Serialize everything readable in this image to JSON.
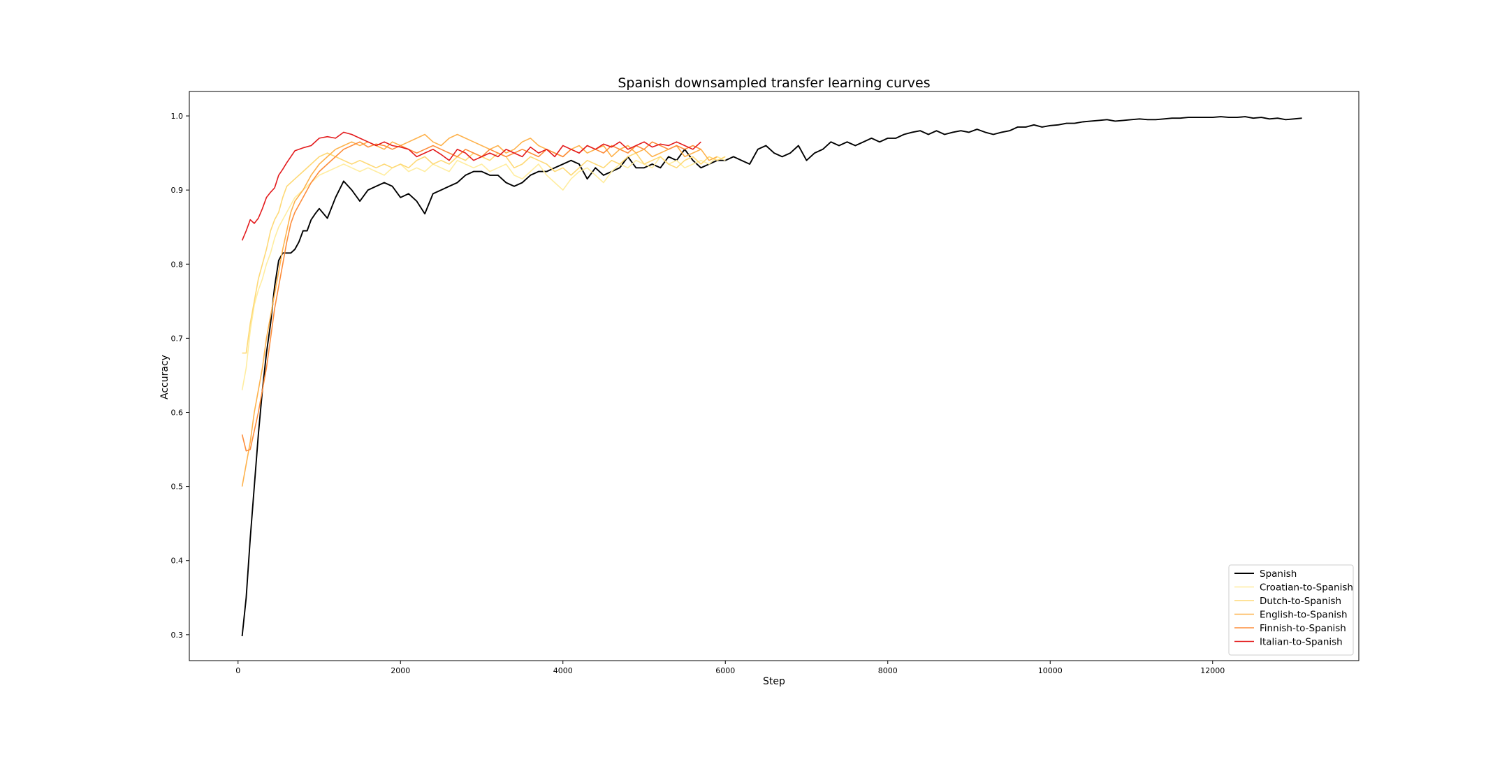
{
  "chart_data": {
    "type": "line",
    "title": "Spanish downsampled transfer learning curves",
    "xlabel": "Step",
    "ylabel": "Accuracy",
    "xlim": [
      -600,
      13800
    ],
    "ylim": [
      0.265,
      1.033
    ],
    "xticks": [
      0,
      2000,
      4000,
      6000,
      8000,
      10000,
      12000
    ],
    "xtick_labels": [
      "0",
      "2000",
      "4000",
      "6000",
      "8000",
      "10000",
      "12000"
    ],
    "yticks": [
      0.3,
      0.4,
      0.5,
      0.6,
      0.7,
      0.8,
      0.9,
      1.0
    ],
    "ytick_labels": [
      "0.3",
      "0.4",
      "0.5",
      "0.6",
      "0.7",
      "0.8",
      "0.9",
      "1.0"
    ],
    "grid": false,
    "legend": "lower-right",
    "series": [
      {
        "name": "Spanish",
        "color": "#000000",
        "x": [
          50,
          100,
          150,
          200,
          250,
          300,
          350,
          400,
          450,
          500,
          550,
          600,
          650,
          700,
          750,
          800,
          850,
          900,
          950,
          1000,
          1100,
          1200,
          1300,
          1400,
          1500,
          1600,
          1700,
          1800,
          1900,
          2000,
          2100,
          2200,
          2300,
          2400,
          2500,
          2600,
          2700,
          2800,
          2900,
          3000,
          3100,
          3200,
          3300,
          3400,
          3500,
          3600,
          3700,
          3800,
          3900,
          4000,
          4100,
          4200,
          4300,
          4400,
          4500,
          4600,
          4700,
          4800,
          4900,
          5000,
          5100,
          5200,
          5300,
          5400,
          5500,
          5600,
          5700,
          5800,
          5900,
          6000,
          6100,
          6200,
          6300,
          6400,
          6500,
          6600,
          6700,
          6800,
          6900,
          7000,
          7100,
          7200,
          7300,
          7400,
          7500,
          7600,
          7700,
          7800,
          7900,
          8000,
          8100,
          8200,
          8300,
          8400,
          8500,
          8600,
          8700,
          8800,
          8900,
          9000,
          9100,
          9200,
          9300,
          9400,
          9500,
          9600,
          9700,
          9800,
          9900,
          10000,
          10100,
          10200,
          10300,
          10400,
          10500,
          10600,
          10700,
          10800,
          10900,
          11000,
          11100,
          11200,
          11300,
          11400,
          11500,
          11600,
          11700,
          11800,
          11900,
          12000,
          12100,
          12200,
          12300,
          12400,
          12500,
          12600,
          12700,
          12800,
          12900,
          13000,
          13100
        ],
        "y": [
          0.298,
          0.35,
          0.43,
          0.5,
          0.57,
          0.63,
          0.68,
          0.72,
          0.77,
          0.805,
          0.815,
          0.815,
          0.815,
          0.82,
          0.83,
          0.845,
          0.845,
          0.86,
          0.868,
          0.875,
          0.862,
          0.89,
          0.912,
          0.9,
          0.885,
          0.9,
          0.905,
          0.91,
          0.905,
          0.89,
          0.895,
          0.885,
          0.868,
          0.895,
          0.9,
          0.905,
          0.91,
          0.92,
          0.925,
          0.925,
          0.92,
          0.92,
          0.91,
          0.905,
          0.91,
          0.92,
          0.925,
          0.925,
          0.93,
          0.935,
          0.94,
          0.935,
          0.915,
          0.93,
          0.92,
          0.925,
          0.93,
          0.945,
          0.93,
          0.93,
          0.935,
          0.93,
          0.945,
          0.94,
          0.955,
          0.94,
          0.93,
          0.935,
          0.94,
          0.94,
          0.945,
          0.94,
          0.935,
          0.955,
          0.96,
          0.95,
          0.945,
          0.95,
          0.96,
          0.94,
          0.95,
          0.955,
          0.965,
          0.96,
          0.965,
          0.96,
          0.965,
          0.97,
          0.965,
          0.97,
          0.97,
          0.975,
          0.978,
          0.98,
          0.975,
          0.98,
          0.975,
          0.978,
          0.98,
          0.978,
          0.982,
          0.978,
          0.975,
          0.978,
          0.98,
          0.985,
          0.985,
          0.988,
          0.985,
          0.987,
          0.988,
          0.99,
          0.99,
          0.992,
          0.993,
          0.994,
          0.995,
          0.993,
          0.994,
          0.995,
          0.996,
          0.995,
          0.995,
          0.996,
          0.997,
          0.997,
          0.998,
          0.998,
          0.998,
          0.998,
          0.999,
          0.998,
          0.998,
          0.999,
          0.997,
          0.998,
          0.996,
          0.997,
          0.995,
          0.996,
          0.997
        ]
      },
      {
        "name": "Croatian-to-Spanish",
        "color": "#ffeda0",
        "x": [
          50,
          100,
          150,
          200,
          250,
          300,
          350,
          400,
          450,
          500,
          550,
          600,
          650,
          700,
          800,
          900,
          1000,
          1100,
          1200,
          1300,
          1400,
          1500,
          1600,
          1700,
          1800,
          1900,
          2000,
          2100,
          2200,
          2300,
          2400,
          2500,
          2600,
          2700,
          2800,
          2900,
          3000,
          3100,
          3200,
          3300,
          3400,
          3500,
          3600,
          3700,
          3800,
          3900,
          4000,
          4100,
          4200,
          4300,
          4400,
          4500,
          4600,
          4700,
          4800,
          4900,
          5000,
          5100,
          5200,
          5300,
          5400,
          5500,
          5600,
          5700,
          5800,
          5900,
          6000
        ],
        "y": [
          0.63,
          0.66,
          0.71,
          0.745,
          0.765,
          0.78,
          0.8,
          0.815,
          0.835,
          0.85,
          0.86,
          0.87,
          0.88,
          0.89,
          0.9,
          0.91,
          0.92,
          0.925,
          0.93,
          0.935,
          0.93,
          0.925,
          0.93,
          0.925,
          0.92,
          0.93,
          0.935,
          0.925,
          0.93,
          0.925,
          0.935,
          0.93,
          0.925,
          0.94,
          0.935,
          0.93,
          0.935,
          0.925,
          0.93,
          0.935,
          0.92,
          0.915,
          0.925,
          0.935,
          0.92,
          0.91,
          0.9,
          0.915,
          0.925,
          0.93,
          0.92,
          0.91,
          0.925,
          0.935,
          0.93,
          0.94,
          0.935,
          0.93,
          0.945,
          0.935,
          0.94,
          0.93,
          0.935,
          0.94,
          0.935,
          0.945,
          0.94
        ]
      },
      {
        "name": "Dutch-to-Spanish",
        "color": "#fed976",
        "x": [
          50,
          100,
          150,
          200,
          250,
          300,
          350,
          400,
          450,
          500,
          550,
          600,
          650,
          700,
          800,
          900,
          1000,
          1100,
          1200,
          1300,
          1400,
          1500,
          1600,
          1700,
          1800,
          1900,
          2000,
          2100,
          2200,
          2300,
          2400,
          2500,
          2600,
          2700,
          2800,
          2900,
          3000,
          3100,
          3200,
          3300,
          3400,
          3500,
          3600,
          3700,
          3800,
          3900,
          4000,
          4100,
          4200,
          4300,
          4400,
          4500,
          4600,
          4700,
          4800,
          4900,
          5000,
          5100,
          5200,
          5300,
          5400,
          5500,
          5600,
          5700,
          5800,
          5900,
          6000
        ],
        "y": [
          0.68,
          0.68,
          0.72,
          0.75,
          0.78,
          0.8,
          0.82,
          0.845,
          0.86,
          0.87,
          0.89,
          0.905,
          0.91,
          0.915,
          0.925,
          0.935,
          0.945,
          0.95,
          0.945,
          0.94,
          0.935,
          0.94,
          0.935,
          0.93,
          0.935,
          0.93,
          0.935,
          0.93,
          0.94,
          0.945,
          0.935,
          0.94,
          0.935,
          0.945,
          0.94,
          0.95,
          0.945,
          0.94,
          0.95,
          0.945,
          0.93,
          0.935,
          0.945,
          0.94,
          0.935,
          0.925,
          0.93,
          0.92,
          0.93,
          0.94,
          0.935,
          0.93,
          0.94,
          0.935,
          0.945,
          0.95,
          0.935,
          0.94,
          0.945,
          0.935,
          0.93,
          0.94,
          0.945,
          0.935,
          0.945,
          0.94,
          0.945
        ]
      },
      {
        "name": "English-to-Spanish",
        "color": "#feb24c",
        "x": [
          50,
          100,
          150,
          200,
          250,
          300,
          350,
          400,
          450,
          500,
          550,
          600,
          650,
          700,
          800,
          900,
          1000,
          1100,
          1200,
          1300,
          1400,
          1500,
          1600,
          1700,
          1800,
          1900,
          2000,
          2100,
          2200,
          2300,
          2400,
          2500,
          2600,
          2700,
          2800,
          2900,
          3000,
          3100,
          3200,
          3300,
          3400,
          3500,
          3600,
          3700,
          3800,
          3900,
          4000,
          4100,
          4200,
          4300,
          4400,
          4500,
          4600,
          4700,
          4800,
          4900,
          5000,
          5100,
          5200,
          5300,
          5400,
          5500,
          5600,
          5700,
          5800,
          5900
        ],
        "y": [
          0.5,
          0.53,
          0.56,
          0.6,
          0.63,
          0.66,
          0.7,
          0.73,
          0.76,
          0.79,
          0.82,
          0.845,
          0.87,
          0.885,
          0.9,
          0.92,
          0.935,
          0.945,
          0.955,
          0.96,
          0.965,
          0.96,
          0.965,
          0.96,
          0.955,
          0.965,
          0.96,
          0.965,
          0.97,
          0.975,
          0.965,
          0.96,
          0.97,
          0.975,
          0.97,
          0.965,
          0.96,
          0.955,
          0.96,
          0.95,
          0.955,
          0.965,
          0.97,
          0.96,
          0.955,
          0.95,
          0.945,
          0.955,
          0.96,
          0.95,
          0.955,
          0.96,
          0.945,
          0.955,
          0.96,
          0.95,
          0.955,
          0.945,
          0.95,
          0.955,
          0.96,
          0.945,
          0.95,
          0.955,
          0.94,
          0.945
        ]
      },
      {
        "name": "Finnish-to-Spanish",
        "color": "#fd8d3c",
        "x": [
          50,
          100,
          150,
          200,
          250,
          300,
          350,
          400,
          450,
          500,
          550,
          600,
          650,
          700,
          800,
          900,
          1000,
          1100,
          1200,
          1300,
          1400,
          1500,
          1600,
          1700,
          1800,
          1900,
          2000,
          2100,
          2200,
          2300,
          2400,
          2500,
          2600,
          2700,
          2800,
          2900,
          3000,
          3100,
          3200,
          3300,
          3400,
          3500,
          3600,
          3700,
          3800,
          3900,
          4000,
          4100,
          4200,
          4300,
          4400,
          4500,
          4600,
          4700,
          4800,
          4900,
          5000,
          5100,
          5200,
          5300,
          5400,
          5500,
          5600,
          5700
        ],
        "y": [
          0.57,
          0.548,
          0.55,
          0.575,
          0.6,
          0.63,
          0.66,
          0.7,
          0.74,
          0.77,
          0.8,
          0.83,
          0.855,
          0.87,
          0.89,
          0.91,
          0.925,
          0.935,
          0.945,
          0.955,
          0.96,
          0.965,
          0.958,
          0.962,
          0.96,
          0.955,
          0.96,
          0.955,
          0.95,
          0.955,
          0.96,
          0.955,
          0.95,
          0.945,
          0.955,
          0.95,
          0.945,
          0.955,
          0.95,
          0.945,
          0.95,
          0.955,
          0.95,
          0.945,
          0.955,
          0.95,
          0.945,
          0.955,
          0.95,
          0.96,
          0.955,
          0.95,
          0.96,
          0.955,
          0.95,
          0.96,
          0.955,
          0.965,
          0.96,
          0.955,
          0.96,
          0.955,
          0.96,
          0.955
        ]
      },
      {
        "name": "Italian-to-Spanish",
        "color": "#e31a1c",
        "x": [
          50,
          100,
          150,
          200,
          250,
          300,
          350,
          400,
          450,
          500,
          550,
          600,
          650,
          700,
          800,
          900,
          1000,
          1100,
          1200,
          1300,
          1400,
          1500,
          1600,
          1700,
          1800,
          1900,
          2000,
          2100,
          2200,
          2300,
          2400,
          2500,
          2600,
          2700,
          2800,
          2900,
          3000,
          3100,
          3200,
          3300,
          3400,
          3500,
          3600,
          3700,
          3800,
          3900,
          4000,
          4100,
          4200,
          4300,
          4400,
          4500,
          4600,
          4700,
          4800,
          4900,
          5000,
          5100,
          5200,
          5300,
          5400,
          5500,
          5600,
          5700
        ],
        "y": [
          0.832,
          0.845,
          0.86,
          0.855,
          0.862,
          0.875,
          0.89,
          0.897,
          0.903,
          0.92,
          0.928,
          0.937,
          0.945,
          0.953,
          0.957,
          0.96,
          0.97,
          0.972,
          0.97,
          0.978,
          0.975,
          0.97,
          0.965,
          0.96,
          0.965,
          0.96,
          0.958,
          0.955,
          0.945,
          0.95,
          0.955,
          0.948,
          0.94,
          0.955,
          0.95,
          0.94,
          0.945,
          0.95,
          0.945,
          0.955,
          0.95,
          0.945,
          0.958,
          0.95,
          0.955,
          0.945,
          0.96,
          0.955,
          0.95,
          0.96,
          0.955,
          0.962,
          0.958,
          0.965,
          0.955,
          0.96,
          0.965,
          0.958,
          0.962,
          0.96,
          0.965,
          0.96,
          0.955,
          0.965
        ]
      }
    ]
  }
}
